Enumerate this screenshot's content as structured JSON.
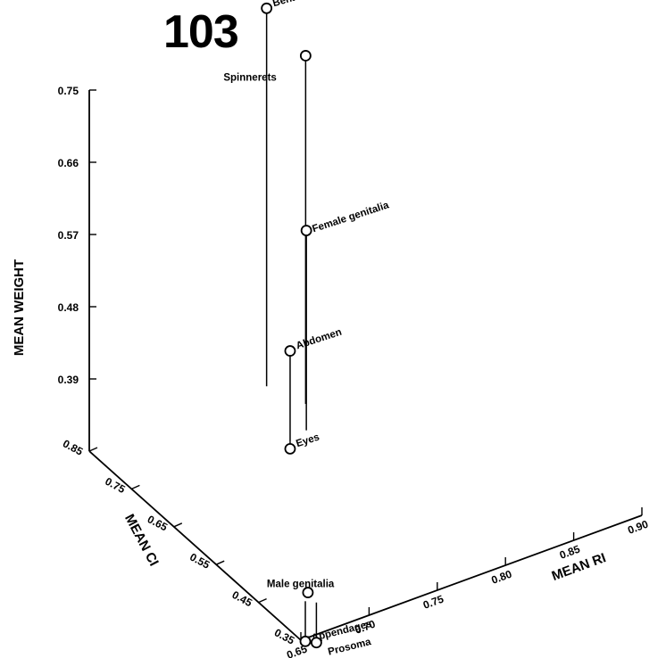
{
  "page_number": "103",
  "chart_data": {
    "type": "scatter",
    "projection": "3d",
    "xlabel": "MEAN RI",
    "ylabel": "MEAN CI",
    "zlabel": "MEAN WEIGHT",
    "xlim": [
      0.65,
      0.9
    ],
    "ylim": [
      0.35,
      0.85
    ],
    "zlim": [
      0.3,
      0.75
    ],
    "x_ticks": [
      "0.65",
      "0.70",
      "0.75",
      "0.80",
      "0.85",
      "0.90"
    ],
    "y_ticks": [
      "0.35",
      "0.45",
      "0.55",
      "0.65",
      "0.75",
      "0.85"
    ],
    "z_ticks": [
      "0.39",
      "0.48",
      "0.57",
      "0.66",
      "0.75"
    ],
    "grid": false,
    "drop_lines": true,
    "points": [
      {
        "label": "Behavior",
        "x": 0.78,
        "y": 0.85,
        "z": 0.771
      },
      {
        "label": "Spinnerets",
        "x": 0.79,
        "y": 0.79,
        "z": 0.734
      },
      {
        "label": "Female genitalia",
        "x": 0.775,
        "y": 0.74,
        "z": 0.549
      },
      {
        "label": "Abdomen",
        "x": 0.76,
        "y": 0.73,
        "z": 0.413
      },
      {
        "label": "Eyes",
        "x": 0.76,
        "y": 0.73,
        "z": 0.291
      },
      {
        "label": "Male genitalia",
        "x": 0.68,
        "y": 0.43,
        "z": 0.303
      },
      {
        "label": "Appendages",
        "x": 0.675,
        "y": 0.42,
        "z": 0.25
      },
      {
        "label": "Prosoma",
        "x": 0.68,
        "y": 0.41,
        "z": 0.25
      }
    ]
  }
}
